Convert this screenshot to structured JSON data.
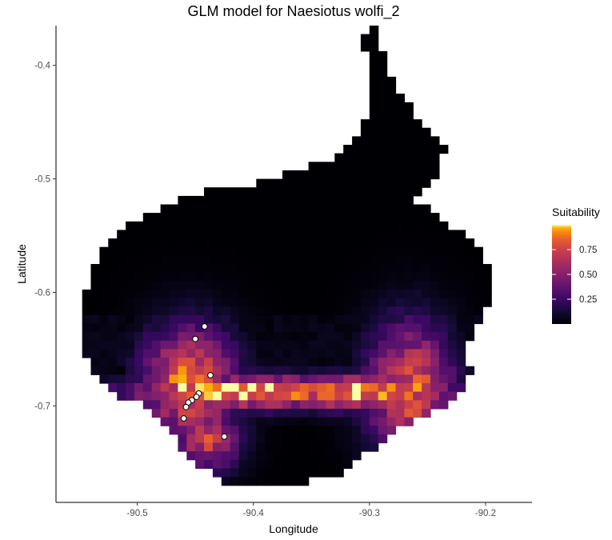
{
  "chart_data": {
    "type": "heatmap",
    "title": "GLM model for Naesiotus wolfi_2",
    "xlabel": "Longitude",
    "ylabel": "Latitude",
    "xlim": [
      -90.57,
      -90.16
    ],
    "ylim": [
      -0.785,
      -0.365
    ],
    "x_ticks": [
      {
        "value": -90.5,
        "label": "-90.5"
      },
      {
        "value": -90.4,
        "label": "-90.4"
      },
      {
        "value": -90.3,
        "label": "-90.3"
      },
      {
        "value": -90.2,
        "label": "-90.2"
      }
    ],
    "y_ticks": [
      {
        "value": -0.4,
        "label": "-0.4"
      },
      {
        "value": -0.5,
        "label": "-0.5"
      },
      {
        "value": -0.6,
        "label": "-0.6"
      },
      {
        "value": -0.7,
        "label": "-0.7"
      }
    ],
    "cell_size_deg": 0.0075,
    "colormap": "inferno",
    "legend": {
      "title": "Suitability",
      "position": "right",
      "range": [
        0.0,
        1.0
      ],
      "breaks": [
        {
          "value": 0.25,
          "label": "0.25"
        },
        {
          "value": 0.5,
          "label": "0.50"
        },
        {
          "value": 0.75,
          "label": "0.75"
        }
      ]
    },
    "grid": false,
    "occurrence_points": [
      {
        "lon": -90.442,
        "lat": -0.63
      },
      {
        "lon": -90.45,
        "lat": -0.641
      },
      {
        "lon": -90.437,
        "lat": -0.673
      },
      {
        "lon": -90.447,
        "lat": -0.689
      },
      {
        "lon": -90.449,
        "lat": -0.692
      },
      {
        "lon": -90.453,
        "lat": -0.695
      },
      {
        "lon": -90.456,
        "lat": -0.697
      },
      {
        "lon": -90.458,
        "lat": -0.701
      },
      {
        "lon": -90.46,
        "lat": -0.711
      },
      {
        "lon": -90.425,
        "lat": -0.727
      }
    ],
    "suitability_hotspots": [
      {
        "lon": -90.4,
        "lat": -0.688,
        "sx": 0.075,
        "sy": 0.01,
        "value": 1.0
      },
      {
        "lon": -90.315,
        "lat": -0.688,
        "sx": 0.06,
        "sy": 0.01,
        "value": 1.0
      },
      {
        "lon": -90.455,
        "lat": -0.68,
        "sx": 0.028,
        "sy": 0.035,
        "value": 0.85
      },
      {
        "lon": -90.265,
        "lat": -0.685,
        "sx": 0.026,
        "sy": 0.04,
        "value": 0.8
      },
      {
        "lon": -90.44,
        "lat": -0.728,
        "sx": 0.02,
        "sy": 0.02,
        "value": 0.7
      }
    ]
  }
}
